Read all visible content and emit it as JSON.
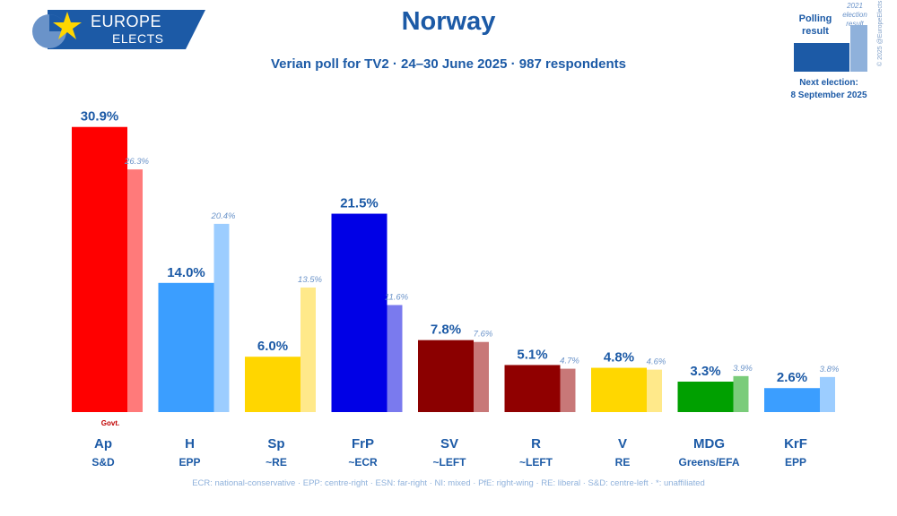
{
  "logo": {
    "line1": "EUROPE",
    "line2": "ELECTS"
  },
  "header": {
    "title": "Norway",
    "subtitle": "Verian poll for TV2 · 24–30 June 2025 · 987 respondents"
  },
  "legend": {
    "poll_label": "Polling result",
    "election_label": "2021 election result",
    "copyright": "© 2025 @EuropeElects",
    "next_election_label": "Next election:",
    "next_election_date": "8 September 2025"
  },
  "footnote": "ECR: national-conservative · EPP: centre-right · ESN: far-right · NI: mixed · PfE: right-wing · RE: liberal · S&D: centre-left · *: unaffiliated",
  "chart_data": {
    "type": "bar",
    "title": "Norway",
    "subtitle": "Verian poll for TV2 · 24–30 June 2025 · 987 respondents",
    "value_suffix": "%",
    "ylim": [
      0,
      31
    ],
    "grid": false,
    "categories": [
      "Ap",
      "H",
      "Sp",
      "FrP",
      "SV",
      "R",
      "V",
      "MDG",
      "KrF"
    ],
    "groups": [
      "S&D",
      "EPP",
      "~RE",
      "~ECR",
      "~LEFT",
      "~LEFT",
      "RE",
      "Greens/EFA",
      "EPP"
    ],
    "series": [
      {
        "name": "Polling result",
        "values": [
          30.9,
          14.0,
          6.0,
          21.5,
          7.8,
          5.1,
          4.8,
          3.3,
          2.6
        ]
      },
      {
        "name": "2021 election result",
        "values": [
          26.3,
          20.4,
          13.5,
          11.6,
          7.6,
          4.7,
          4.6,
          3.9,
          3.8
        ]
      }
    ],
    "colors": [
      "#ff0000",
      "#3b9eff",
      "#ffd600",
      "#0000e6",
      "#8b0000",
      "#900000",
      "#ffd700",
      "#00a000",
      "#3b9eff"
    ],
    "election_colors": [
      "#ff7a7a",
      "#9ccdff",
      "#ffe98a",
      "#7a7aee",
      "#c87878",
      "#c87878",
      "#ffe98a",
      "#7acc7a",
      "#9ccdff"
    ],
    "annotations": [
      {
        "category": "Ap",
        "text": "Govt."
      }
    ]
  }
}
